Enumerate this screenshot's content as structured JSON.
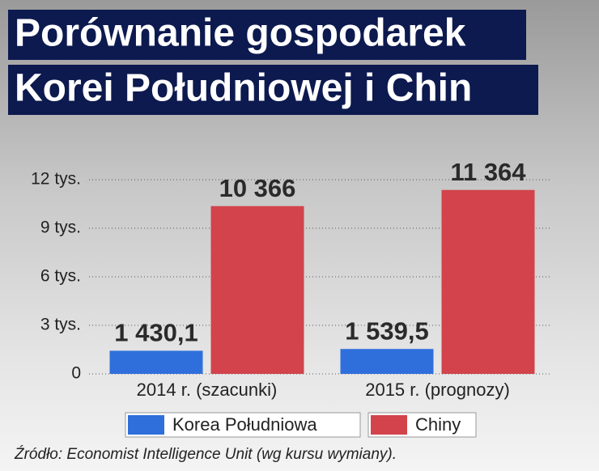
{
  "chart_data": {
    "type": "bar",
    "title": [
      "Porównanie gospodarek",
      "Korei Południowej i Chin"
    ],
    "categories": [
      "2014 r. (szacunki)",
      "2015 r. (prognozy)"
    ],
    "series": [
      {
        "name": "Korea Południowa",
        "color": "#2f6fdc",
        "values": [
          1430.1,
          1539.5
        ],
        "value_labels": [
          "1 430,1",
          "1 539,5"
        ]
      },
      {
        "name": "Chiny",
        "color": "#d2434b",
        "values": [
          10366,
          11364
        ],
        "value_labels": [
          "10 366",
          "11 364"
        ]
      }
    ],
    "ylim": [
      0,
      12000
    ],
    "yticks": [
      0,
      {
        "value": 3000,
        "label": "3 tys."
      },
      {
        "value": 6000,
        "label": "6 tys."
      },
      {
        "value": 9000,
        "label": "9 tys."
      },
      {
        "value": 12000,
        "label": "12 tys."
      }
    ],
    "grid": true,
    "source": "Źródło: Economist Intelligence Unit (wg kursu wymiany)."
  }
}
